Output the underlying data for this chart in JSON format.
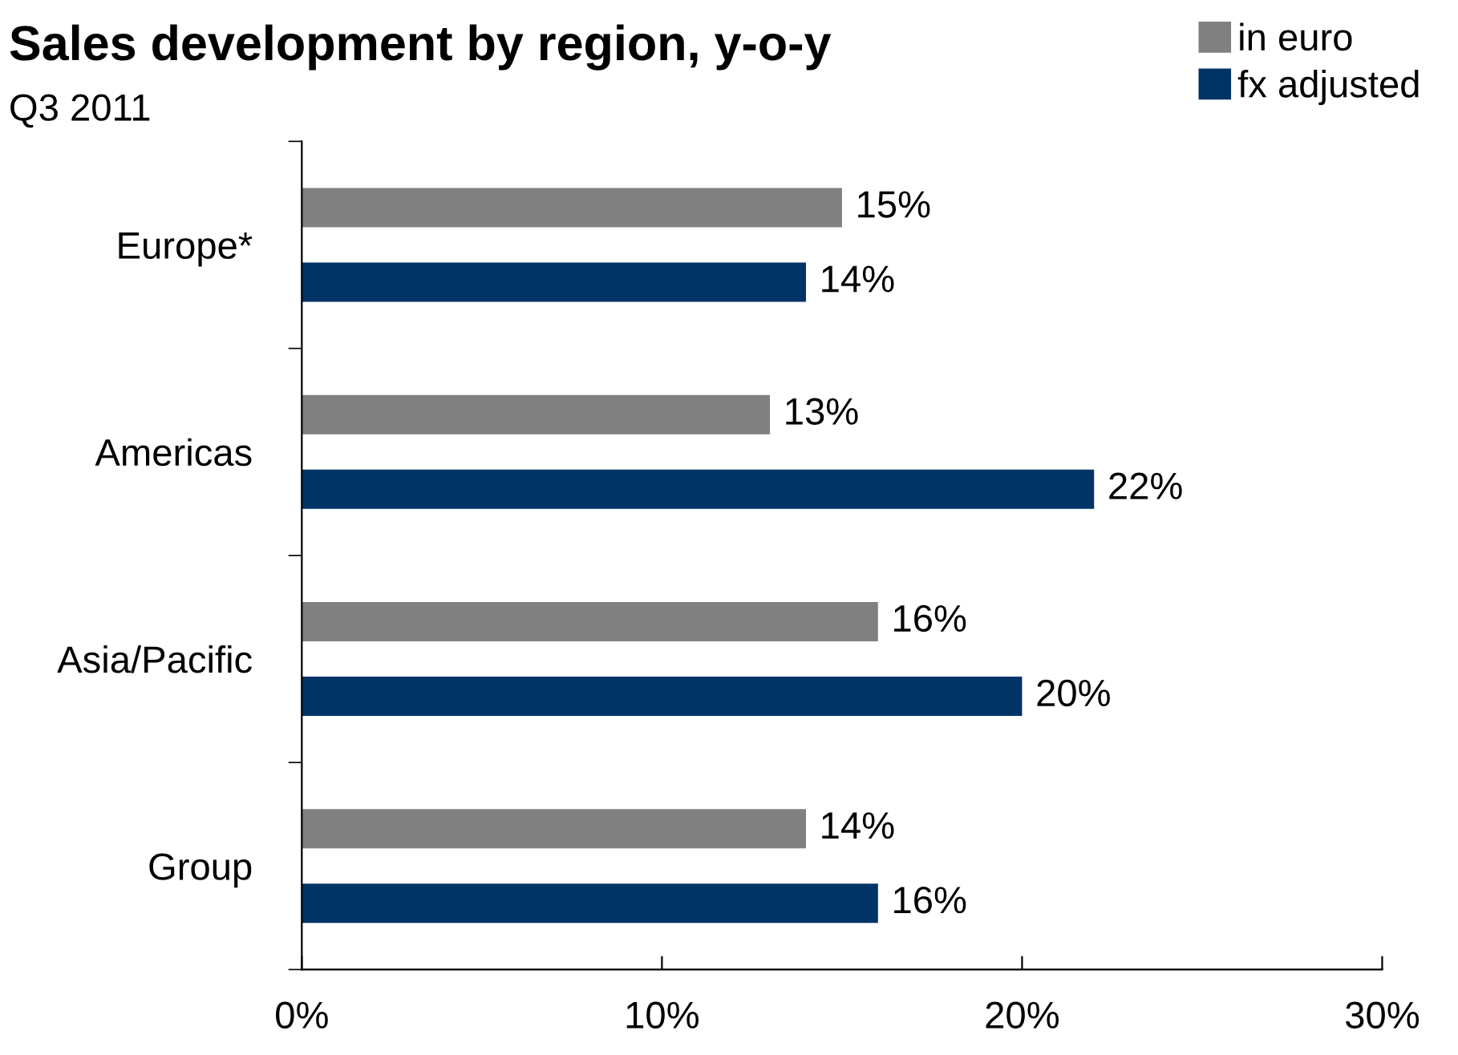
{
  "chart_data": {
    "type": "bar",
    "orientation": "horizontal",
    "title": "Sales development by region, y-o-y",
    "subtitle": "Q3 2011",
    "categories": [
      "Europe*",
      "Americas",
      "Asia/Pacific",
      "Group"
    ],
    "series": [
      {
        "name": "in euro",
        "color": "#808080",
        "values": [
          15,
          13,
          16,
          14
        ],
        "value_labels": [
          "15%",
          "13%",
          "16%",
          "14%"
        ]
      },
      {
        "name": "fx adjusted",
        "color": "#003366",
        "values": [
          14,
          22,
          20,
          16
        ],
        "value_labels": [
          "14%",
          "22%",
          "20%",
          "16%"
        ]
      }
    ],
    "xlim": [
      0,
      30
    ],
    "xticks": [
      {
        "value": 0,
        "label": "0%"
      },
      {
        "value": 10,
        "label": "10%"
      },
      {
        "value": 20,
        "label": "20%"
      },
      {
        "value": 30,
        "label": "30%"
      }
    ],
    "grid": false,
    "legend": "top right"
  }
}
